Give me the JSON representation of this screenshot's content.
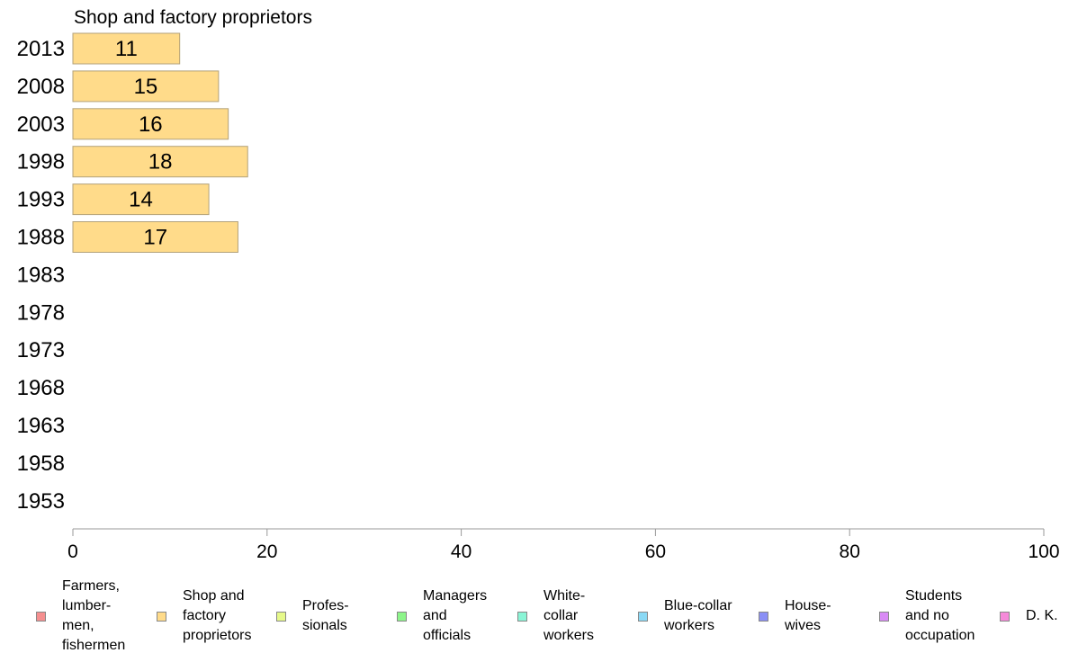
{
  "chart_data": {
    "type": "bar",
    "orientation": "horizontal",
    "title": "Shop and factory proprietors",
    "categories": [
      "2013",
      "2008",
      "2003",
      "1998",
      "1993",
      "1988",
      "1983",
      "1978",
      "1973",
      "1968",
      "1963",
      "1958",
      "1953"
    ],
    "series": [
      {
        "name": "Shop and factory proprietors",
        "values": [
          11,
          15,
          16,
          18,
          14,
          17,
          null,
          null,
          null,
          null,
          null,
          null,
          null
        ]
      }
    ],
    "xlim": [
      0,
      100
    ],
    "x_ticks": [
      "0",
      "20",
      "40",
      "60",
      "80",
      "100"
    ],
    "grid": false,
    "legend_position": "bottom",
    "bar_color": "#ffdb8a",
    "bar_border_color": "#b3a27a"
  },
  "legend": [
    {
      "label": "Farmers,\nlumber-\nmen,\nfishermen",
      "color": "#f58f8f"
    },
    {
      "label": "Shop and\nfactory\nproprietors",
      "color": "#ffdb8a"
    },
    {
      "label": "Profes-\nsionals",
      "color": "#e6f98a"
    },
    {
      "label": "Managers\nand\nofficials",
      "color": "#8df58a"
    },
    {
      "label": "White-\ncollar\nworkers",
      "color": "#8af5d6"
    },
    {
      "label": "Blue-collar\nworkers",
      "color": "#8ad9f5"
    },
    {
      "label": "House-\nwives",
      "color": "#8a8ff5"
    },
    {
      "label": "Students\nand no\noccupation",
      "color": "#d98af5"
    },
    {
      "label": "D. K.",
      "color": "#f58ad9"
    }
  ]
}
